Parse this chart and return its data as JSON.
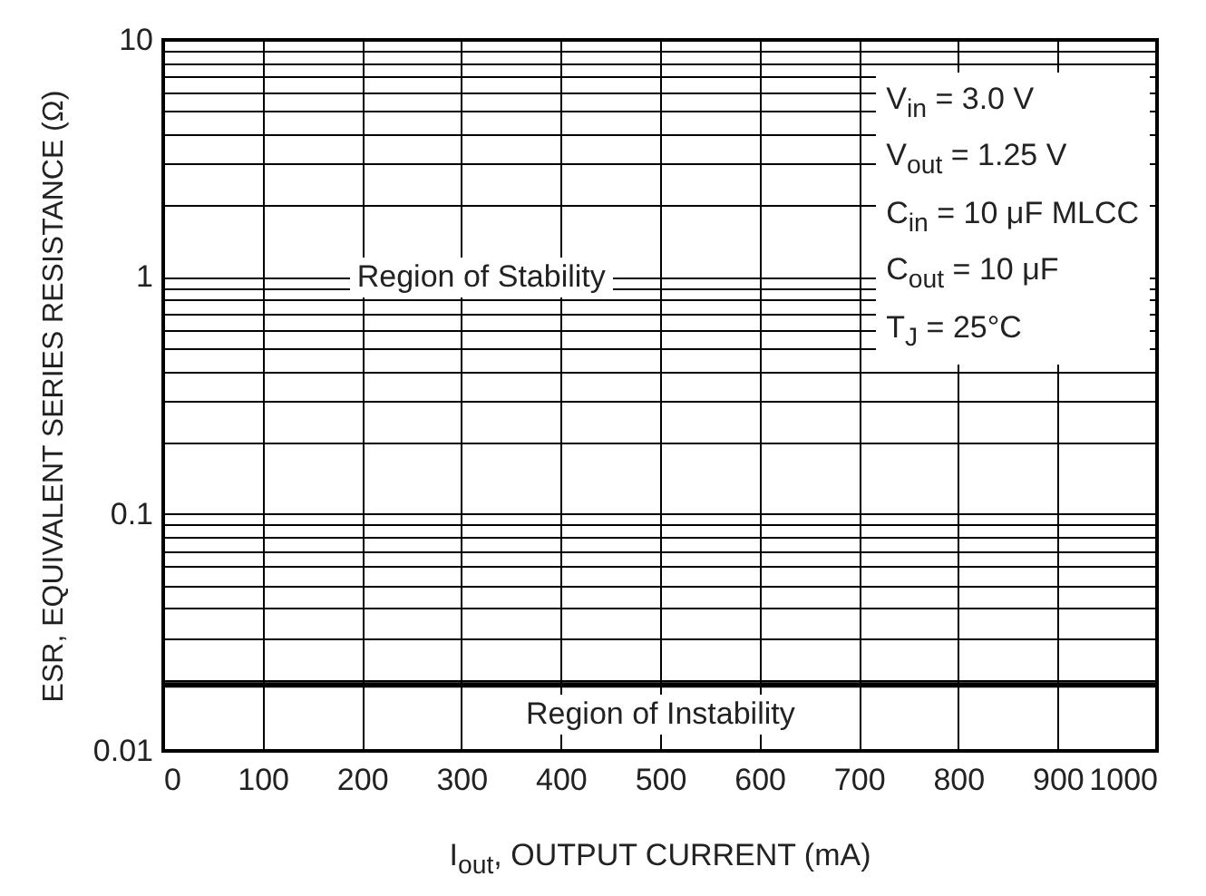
{
  "chart_data": {
    "type": "line",
    "xlabel": "I$_{out}$, OUTPUT CURRENT (mA)",
    "ylabel": "ESR, EQUIVALENT SERIES RESISTANCE (Ω)",
    "x": [
      0,
      1000
    ],
    "series": [
      {
        "color": "#000000",
        "values": [
          0.019,
          0.019
        ]
      }
    ],
    "xlim": [
      0,
      1000
    ],
    "xticks": [
      0,
      100,
      200,
      300,
      400,
      500,
      600,
      700,
      800,
      900,
      1000
    ],
    "ylim": [
      0.01,
      10
    ],
    "yticks": [
      0.01,
      0.1,
      1,
      10
    ],
    "log": true,
    "grid": true,
    "annotations": [
      "V$_{in}$ = 3.0 V",
      "V$_{out}$ = 1.25 V",
      "C$_{in}$ = 10 μF MLCC",
      "C$_{out}$ = 10 μF",
      "T$_{J}$ = 25°C",
      "Region of Stability",
      "Region of Instability"
    ]
  }
}
